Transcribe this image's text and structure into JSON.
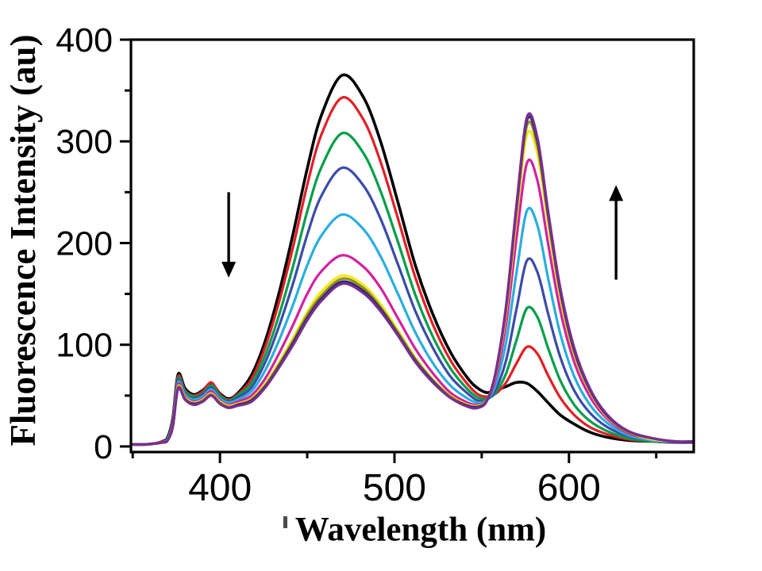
{
  "chart_data": {
    "type": "line",
    "title": "",
    "xlabel": "Wavelength (nm)",
    "ylabel": "Fluorescence Intensity (au)",
    "xlim": [
      349,
      671.5
    ],
    "ylim": [
      -5.5,
      400
    ],
    "x_ticks": [
      400,
      500,
      600
    ],
    "x_minor_ticks": [
      350,
      450,
      550,
      650
    ],
    "y_ticks": [
      0,
      100,
      200,
      300,
      400
    ],
    "y_minor_ticks": [
      50,
      150,
      250,
      350
    ],
    "grid": "off",
    "legend": "none",
    "x": [
      349,
      357,
      363,
      367,
      370,
      373,
      376,
      380,
      385,
      390,
      395,
      400,
      405,
      410,
      418,
      426,
      434,
      442,
      450,
      458,
      470,
      482,
      492,
      502,
      512,
      522,
      532,
      542,
      548,
      553,
      558,
      564,
      570,
      576,
      582,
      588,
      595,
      603,
      612,
      622,
      634,
      648,
      660,
      671
    ],
    "series": [
      {
        "name": "black",
        "color": "#000000",
        "peak470": 365,
        "peak576": 62,
        "values": [
          2,
          2,
          3,
          5,
          9,
          28,
          71,
          57,
          51,
          55,
          62,
          52,
          47,
          52,
          70,
          104,
          152,
          210,
          273,
          325,
          365,
          344,
          300,
          240,
          178,
          130,
          93,
          67,
          57,
          53,
          55,
          59,
          63,
          62,
          54,
          43,
          31,
          22,
          14,
          9,
          6,
          5,
          4,
          4
        ]
      },
      {
        "name": "red",
        "color": "#E31E24",
        "peak470": 343,
        "peak576": 98,
        "values": [
          2,
          2,
          3,
          5,
          8,
          26,
          69,
          55,
          50,
          54,
          63,
          51,
          46,
          51,
          66,
          98,
          143,
          197,
          257,
          306,
          343,
          322,
          280,
          224,
          166,
          120,
          85,
          61,
          51,
          49,
          52,
          63,
          82,
          98,
          91,
          70,
          48,
          31,
          19,
          12,
          7,
          5,
          4,
          4
        ]
      },
      {
        "name": "green",
        "color": "#009E49",
        "peak470": 308,
        "peak576": 136,
        "values": [
          2,
          2,
          3,
          4,
          8,
          25,
          67,
          54,
          49,
          52,
          60,
          50,
          45,
          50,
          62,
          90,
          130,
          178,
          231,
          274,
          308,
          289,
          251,
          201,
          149,
          108,
          77,
          56,
          48,
          47,
          53,
          72,
          105,
          136,
          127,
          97,
          65,
          41,
          25,
          15,
          8,
          5,
          4,
          4
        ]
      },
      {
        "name": "blue",
        "color": "#3A4CA8",
        "peak470": 274,
        "peak576": 183,
        "values": [
          2,
          2,
          3,
          4,
          7,
          24,
          65,
          52,
          47,
          51,
          58,
          48,
          44,
          48,
          58,
          83,
          119,
          161,
          208,
          246,
          274,
          257,
          224,
          179,
          133,
          97,
          69,
          52,
          45,
          46,
          56,
          85,
          136,
          183,
          171,
          131,
          88,
          55,
          33,
          19,
          10,
          6,
          4,
          4
        ]
      },
      {
        "name": "cyan",
        "color": "#29AEDE",
        "peak470": 228,
        "peak576": 232,
        "values": [
          2,
          2,
          3,
          4,
          7,
          23,
          63,
          51,
          46,
          49,
          56,
          47,
          43,
          46,
          54,
          75,
          105,
          140,
          178,
          207,
          228,
          214,
          187,
          150,
          112,
          82,
          60,
          47,
          43,
          46,
          61,
          103,
          172,
          232,
          217,
          166,
          111,
          69,
          41,
          23,
          11,
          6,
          5,
          4
        ]
      },
      {
        "name": "magenta",
        "color": "#D4219E",
        "peak470": 188,
        "peak576": 279,
        "values": [
          2,
          2,
          3,
          4,
          6,
          22,
          61,
          49,
          44,
          47,
          54,
          45,
          41,
          44,
          50,
          67,
          92,
          120,
          150,
          172,
          188,
          177,
          156,
          126,
          96,
          72,
          53,
          43,
          41,
          46,
          67,
          121,
          206,
          279,
          261,
          200,
          134,
          83,
          49,
          27,
          13,
          7,
          5,
          4
        ]
      },
      {
        "name": "yellow",
        "color": "#F5E61B",
        "peak470": 168,
        "peak576": 307,
        "values": [
          2,
          2,
          3,
          4,
          6,
          21,
          59,
          48,
          43,
          46,
          52,
          44,
          40,
          42,
          47,
          62,
          83,
          107,
          132,
          152,
          168,
          159,
          140,
          114,
          87,
          66,
          50,
          41,
          40,
          46,
          71,
          132,
          226,
          307,
          287,
          220,
          147,
          91,
          54,
          29,
          14,
          7,
          5,
          4
        ]
      },
      {
        "name": "dark-yellow",
        "color": "#8F8F1D",
        "peak470": 165,
        "peak576": 316,
        "values": [
          2,
          2,
          3,
          4,
          6,
          21,
          58,
          47,
          42,
          45,
          51,
          43,
          39,
          41,
          46,
          60,
          81,
          104,
          129,
          148,
          165,
          156,
          137,
          112,
          86,
          65,
          49,
          40,
          39,
          46,
          72,
          136,
          233,
          316,
          295,
          226,
          151,
          93,
          55,
          30,
          14,
          8,
          5,
          4
        ]
      },
      {
        "name": "navy",
        "color": "#2B2A74",
        "peak470": 162,
        "peak576": 321,
        "values": [
          2,
          2,
          3,
          4,
          6,
          20,
          57,
          46,
          42,
          44,
          50,
          42,
          38,
          41,
          45,
          59,
          79,
          102,
          126,
          145,
          162,
          153,
          135,
          110,
          84,
          64,
          48,
          40,
          39,
          45,
          73,
          138,
          237,
          321,
          300,
          230,
          154,
          95,
          56,
          30,
          15,
          8,
          5,
          4
        ]
      },
      {
        "name": "purple",
        "color": "#7A2D90",
        "peak470": 160,
        "peak576": 324,
        "values": [
          2,
          2,
          3,
          4,
          6,
          20,
          57,
          46,
          41,
          44,
          50,
          42,
          38,
          40,
          44,
          58,
          78,
          100,
          124,
          143,
          160,
          151,
          133,
          109,
          83,
          63,
          48,
          39,
          38,
          45,
          73,
          139,
          239,
          324,
          303,
          232,
          156,
          97,
          57,
          31,
          15,
          8,
          5,
          5
        ]
      }
    ],
    "annotations": [
      {
        "kind": "arrow",
        "direction": "down",
        "wavelength": 405,
        "intensity_from": 250,
        "intensity_to": 166,
        "meaning": "band at 470 nm decreases"
      },
      {
        "kind": "arrow",
        "direction": "up",
        "wavelength": 627,
        "intensity_from": 164,
        "intensity_to": 257,
        "meaning": "band at 576 nm increases"
      }
    ],
    "axis_color": "#000000",
    "background_color": "#ffffff"
  }
}
